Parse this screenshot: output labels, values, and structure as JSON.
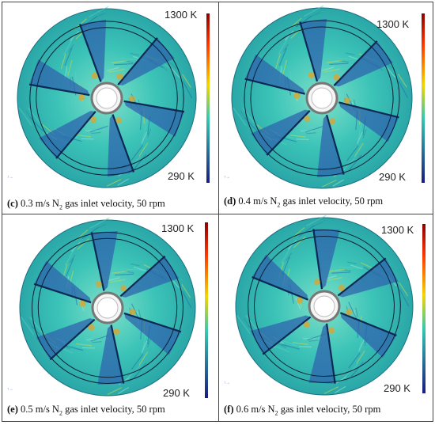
{
  "figure": {
    "panels": [
      {
        "id": "c",
        "letter": "(c)",
        "caption_before": "0.3 m/s N",
        "caption_sub": "2",
        "caption_after": " gas inlet velocity, 50 rpm",
        "scale_max": "1300 K",
        "scale_min": "290 K"
      },
      {
        "id": "d",
        "letter": "(d)",
        "caption_before": "0.4 m/s N",
        "caption_sub": "2",
        "caption_after": " gas inlet velocity, 50 rpm",
        "scale_max": "1300 K",
        "scale_min": "290 K"
      },
      {
        "id": "e",
        "letter": "(e)",
        "caption_before": "0.5 m/s N",
        "caption_sub": "2",
        "caption_after": " gas inlet velocity, 50 rpm",
        "scale_max": "1300 K",
        "scale_min": "290 K"
      },
      {
        "id": "f",
        "letter": "(f)",
        "caption_before": "0.6 m/s N",
        "caption_sub": "2",
        "caption_after": " gas inlet velocity, 50 rpm",
        "scale_max": "1300 K",
        "scale_min": "290 K"
      }
    ],
    "colors": {
      "scale_top": "#8b0000",
      "scale_mid_hot": "#ff3300",
      "scale_mid": "#f2d600",
      "scale_mid_cool": "#33c8b0",
      "scale_bottom": "#1a1a80",
      "disk_base": "#3cc4b8",
      "vane": "#2f64ad"
    }
  }
}
